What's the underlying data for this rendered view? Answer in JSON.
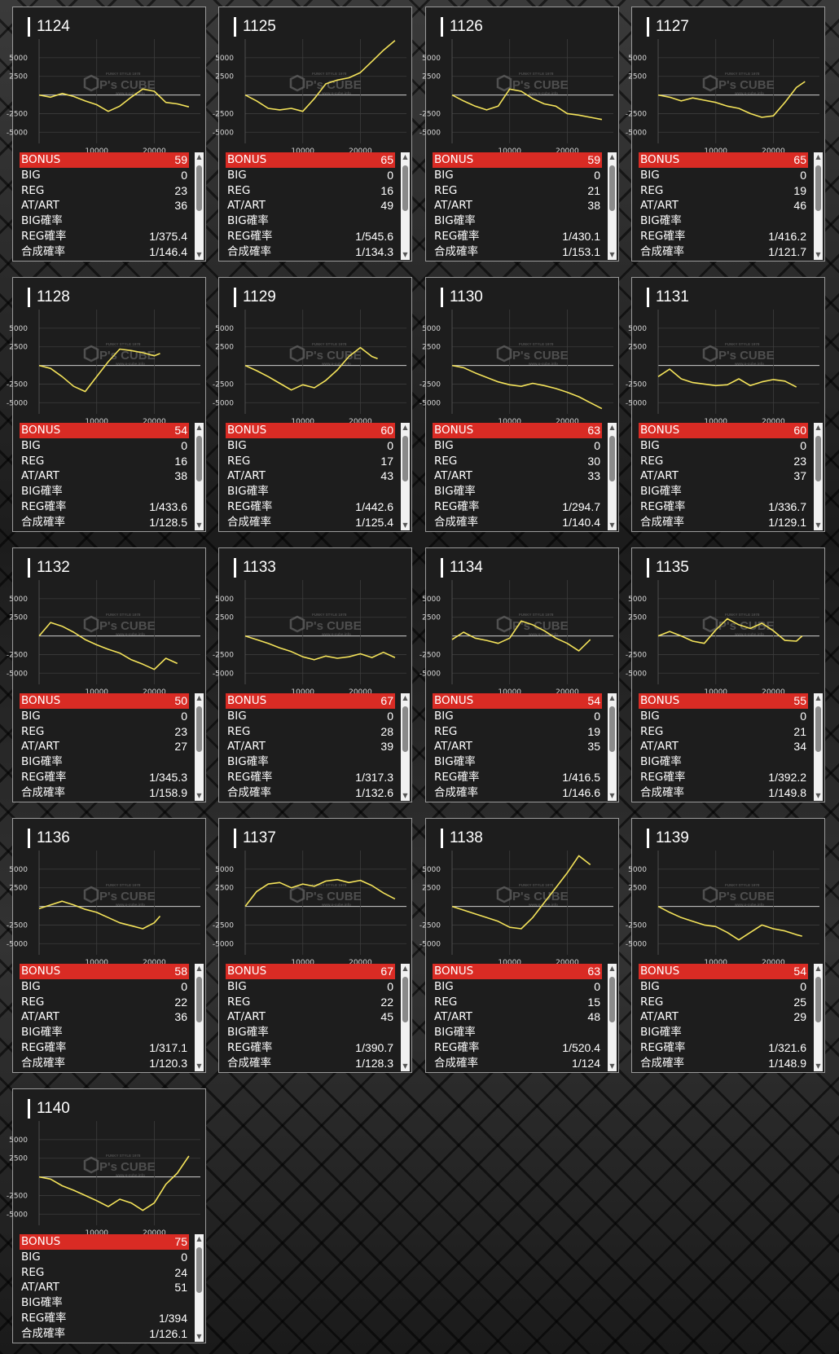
{
  "labels": {
    "bonus": "BONUS",
    "big": "BIG",
    "reg": "REG",
    "at_art": "AT/ART",
    "big_rate": "BIG確率",
    "reg_rate": "REG確率",
    "combined_rate": "合成確率"
  },
  "chart_axis": {
    "y_ticks": [
      5000,
      2500,
      0,
      -2500,
      -5000
    ],
    "y_tick_labels": [
      "5000",
      "2500",
      "",
      "-2500",
      "-5000"
    ],
    "x_ticks": [
      10000,
      20000
    ],
    "x_tick_labels": [
      "10000",
      "20000"
    ],
    "ylim": [
      -6500,
      7500
    ],
    "xlim": [
      0,
      28000
    ]
  },
  "watermark": {
    "brand": "P's CUBE",
    "top_text": "FUNKY STYLE 1978",
    "bottom_text": "www.p-cube.info"
  },
  "colors": {
    "line": "#f4e35a",
    "bonus_bar": "#d92b24",
    "card_bg": "#1d1d1d"
  },
  "machines": [
    {
      "id": "1124",
      "bonus": "59",
      "big": "0",
      "reg": "23",
      "at_art": "36",
      "big_rate": "",
      "reg_rate": "1/375.4",
      "combined_rate": "1/146.4",
      "chart_data": {
        "type": "line",
        "x": [
          0,
          2000,
          4000,
          6000,
          8000,
          10000,
          12000,
          14000,
          16000,
          18000,
          20000,
          22000,
          24000,
          26000
        ],
        "y": [
          0,
          -300,
          200,
          -200,
          -800,
          -1300,
          -2200,
          -1500,
          -300,
          800,
          500,
          -1000,
          -1200,
          -1600
        ]
      }
    },
    {
      "id": "1125",
      "bonus": "65",
      "big": "0",
      "reg": "16",
      "at_art": "49",
      "big_rate": "",
      "reg_rate": "1/545.6",
      "combined_rate": "1/134.3",
      "chart_data": {
        "type": "line",
        "x": [
          0,
          2000,
          4000,
          6000,
          8000,
          10000,
          12000,
          14000,
          16000,
          18000,
          20000,
          22000,
          24000,
          26000
        ],
        "y": [
          0,
          -800,
          -1800,
          -2000,
          -1800,
          -2200,
          -500,
          1500,
          2000,
          2300,
          3000,
          4500,
          6000,
          7300
        ]
      }
    },
    {
      "id": "1126",
      "bonus": "59",
      "big": "0",
      "reg": "21",
      "at_art": "38",
      "big_rate": "",
      "reg_rate": "1/430.1",
      "combined_rate": "1/153.1",
      "chart_data": {
        "type": "line",
        "x": [
          0,
          2000,
          4000,
          6000,
          8000,
          10000,
          12000,
          14000,
          16000,
          18000,
          20000,
          22000,
          24000,
          26000
        ],
        "y": [
          0,
          -800,
          -1500,
          -2000,
          -1500,
          800,
          500,
          -500,
          -1200,
          -1500,
          -2500,
          -2700,
          -3000,
          -3300
        ]
      }
    },
    {
      "id": "1127",
      "bonus": "65",
      "big": "0",
      "reg": "19",
      "at_art": "46",
      "big_rate": "",
      "reg_rate": "1/416.2",
      "combined_rate": "1/121.7",
      "chart_data": {
        "type": "line",
        "x": [
          0,
          2000,
          4000,
          6000,
          8000,
          10000,
          12000,
          14000,
          16000,
          18000,
          20000,
          22000,
          24000,
          25500
        ],
        "y": [
          0,
          -300,
          -800,
          -400,
          -700,
          -1000,
          -1500,
          -1800,
          -2500,
          -3000,
          -2800,
          -1000,
          1000,
          1800
        ]
      }
    },
    {
      "id": "1128",
      "bonus": "54",
      "big": "0",
      "reg": "16",
      "at_art": "38",
      "big_rate": "",
      "reg_rate": "1/433.6",
      "combined_rate": "1/128.5",
      "chart_data": {
        "type": "line",
        "x": [
          0,
          2000,
          4000,
          6000,
          8000,
          10000,
          12000,
          14000,
          16000,
          18000,
          20000,
          21000
        ],
        "y": [
          0,
          -400,
          -1500,
          -2800,
          -3500,
          -1500,
          500,
          2200,
          2000,
          1700,
          1300,
          1600
        ]
      }
    },
    {
      "id": "1129",
      "bonus": "60",
      "big": "0",
      "reg": "17",
      "at_art": "43",
      "big_rate": "",
      "reg_rate": "1/442.6",
      "combined_rate": "1/125.4",
      "chart_data": {
        "type": "line",
        "x": [
          0,
          2000,
          4000,
          6000,
          8000,
          10000,
          12000,
          14000,
          16000,
          18000,
          20000,
          22000,
          23000
        ],
        "y": [
          0,
          -700,
          -1500,
          -2400,
          -3300,
          -2600,
          -3000,
          -2000,
          -600,
          1200,
          2400,
          1200,
          900
        ]
      }
    },
    {
      "id": "1130",
      "bonus": "63",
      "big": "0",
      "reg": "30",
      "at_art": "33",
      "big_rate": "",
      "reg_rate": "1/294.7",
      "combined_rate": "1/140.4",
      "chart_data": {
        "type": "line",
        "x": [
          0,
          2000,
          4000,
          6000,
          8000,
          10000,
          12000,
          14000,
          16000,
          18000,
          20000,
          22000,
          24000,
          26000
        ],
        "y": [
          0,
          -300,
          -1000,
          -1600,
          -2200,
          -2600,
          -2800,
          -2400,
          -2700,
          -3100,
          -3600,
          -4200,
          -5000,
          -5800
        ]
      }
    },
    {
      "id": "1131",
      "bonus": "60",
      "big": "0",
      "reg": "23",
      "at_art": "37",
      "big_rate": "",
      "reg_rate": "1/336.7",
      "combined_rate": "1/129.1",
      "chart_data": {
        "type": "line",
        "x": [
          0,
          2000,
          4000,
          6000,
          8000,
          10000,
          12000,
          14000,
          16000,
          18000,
          20000,
          22000,
          24000
        ],
        "y": [
          -1500,
          -500,
          -1800,
          -2300,
          -2500,
          -2700,
          -2600,
          -1800,
          -2700,
          -2200,
          -1900,
          -2100,
          -2900
        ]
      }
    },
    {
      "id": "1132",
      "bonus": "50",
      "big": "0",
      "reg": "23",
      "at_art": "27",
      "big_rate": "",
      "reg_rate": "1/345.3",
      "combined_rate": "1/158.9",
      "chart_data": {
        "type": "line",
        "x": [
          0,
          2000,
          4000,
          6000,
          8000,
          10000,
          12000,
          14000,
          16000,
          18000,
          20000,
          22000,
          24000
        ],
        "y": [
          0,
          1800,
          1300,
          500,
          -500,
          -1200,
          -1800,
          -2300,
          -3200,
          -3800,
          -4500,
          -3000,
          -3700
        ]
      }
    },
    {
      "id": "1133",
      "bonus": "67",
      "big": "0",
      "reg": "28",
      "at_art": "39",
      "big_rate": "",
      "reg_rate": "1/317.3",
      "combined_rate": "1/132.6",
      "chart_data": {
        "type": "line",
        "x": [
          0,
          2000,
          4000,
          6000,
          8000,
          10000,
          12000,
          14000,
          16000,
          18000,
          20000,
          22000,
          24000,
          26000
        ],
        "y": [
          0,
          -500,
          -1000,
          -1600,
          -2100,
          -2800,
          -3200,
          -2700,
          -3000,
          -2800,
          -2400,
          -2900,
          -2200,
          -2900
        ]
      }
    },
    {
      "id": "1134",
      "bonus": "54",
      "big": "0",
      "reg": "19",
      "at_art": "35",
      "big_rate": "",
      "reg_rate": "1/416.5",
      "combined_rate": "1/146.6",
      "chart_data": {
        "type": "line",
        "x": [
          0,
          2000,
          4000,
          6000,
          8000,
          10000,
          12000,
          14000,
          16000,
          18000,
          20000,
          22000,
          24000
        ],
        "y": [
          -500,
          500,
          -300,
          -600,
          -1000,
          -300,
          2000,
          1500,
          700,
          -300,
          -1000,
          -2000,
          -500
        ]
      }
    },
    {
      "id": "1135",
      "bonus": "55",
      "big": "0",
      "reg": "21",
      "at_art": "34",
      "big_rate": "",
      "reg_rate": "1/392.2",
      "combined_rate": "1/149.8",
      "chart_data": {
        "type": "line",
        "x": [
          0,
          2000,
          4000,
          6000,
          8000,
          10000,
          12000,
          14000,
          16000,
          18000,
          20000,
          22000,
          24000,
          25000
        ],
        "y": [
          0,
          600,
          0,
          -700,
          -1000,
          800,
          2300,
          1500,
          1000,
          1700,
          700,
          -600,
          -700,
          0
        ]
      }
    },
    {
      "id": "1136",
      "bonus": "58",
      "big": "0",
      "reg": "22",
      "at_art": "36",
      "big_rate": "",
      "reg_rate": "1/317.1",
      "combined_rate": "1/120.3",
      "chart_data": {
        "type": "line",
        "x": [
          0,
          2000,
          4000,
          6000,
          8000,
          10000,
          12000,
          14000,
          16000,
          18000,
          20000,
          21000
        ],
        "y": [
          -300,
          200,
          700,
          200,
          -400,
          -800,
          -1500,
          -2200,
          -2600,
          -3000,
          -2200,
          -1300
        ]
      }
    },
    {
      "id": "1137",
      "bonus": "67",
      "big": "0",
      "reg": "22",
      "at_art": "45",
      "big_rate": "",
      "reg_rate": "1/390.7",
      "combined_rate": "1/128.3",
      "chart_data": {
        "type": "line",
        "x": [
          0,
          2000,
          4000,
          6000,
          8000,
          10000,
          12000,
          14000,
          16000,
          18000,
          20000,
          22000,
          24000,
          26000
        ],
        "y": [
          0,
          2000,
          3000,
          3200,
          2500,
          3000,
          2700,
          3400,
          3600,
          3200,
          3500,
          2800,
          1800,
          1000
        ]
      }
    },
    {
      "id": "1138",
      "bonus": "63",
      "big": "0",
      "reg": "15",
      "at_art": "48",
      "big_rate": "",
      "reg_rate": "1/520.4",
      "combined_rate": "1/124",
      "chart_data": {
        "type": "line",
        "x": [
          0,
          2000,
          4000,
          6000,
          8000,
          10000,
          12000,
          14000,
          16000,
          18000,
          20000,
          22000,
          24000
        ],
        "y": [
          0,
          -500,
          -1000,
          -1500,
          -2000,
          -2800,
          -3000,
          -1500,
          500,
          2500,
          4500,
          6800,
          5600
        ]
      }
    },
    {
      "id": "1139",
      "bonus": "54",
      "big": "0",
      "reg": "25",
      "at_art": "29",
      "big_rate": "",
      "reg_rate": "1/321.6",
      "combined_rate": "1/148.9",
      "chart_data": {
        "type": "line",
        "x": [
          0,
          2000,
          4000,
          6000,
          8000,
          10000,
          12000,
          14000,
          16000,
          18000,
          20000,
          22000,
          24000,
          25000
        ],
        "y": [
          0,
          -800,
          -1500,
          -2000,
          -2500,
          -2700,
          -3500,
          -4500,
          -3500,
          -2500,
          -3000,
          -3300,
          -3800,
          -4000
        ]
      }
    },
    {
      "id": "1140",
      "bonus": "75",
      "big": "0",
      "reg": "24",
      "at_art": "51",
      "big_rate": "",
      "reg_rate": "1/394",
      "combined_rate": "1/126.1",
      "chart_data": {
        "type": "line",
        "x": [
          0,
          2000,
          4000,
          6000,
          8000,
          10000,
          12000,
          14000,
          16000,
          18000,
          20000,
          22000,
          24000,
          26000
        ],
        "y": [
          0,
          -300,
          -1200,
          -1800,
          -2500,
          -3200,
          -4000,
          -3000,
          -3500,
          -4500,
          -3500,
          -1000,
          500,
          2800
        ]
      }
    }
  ]
}
